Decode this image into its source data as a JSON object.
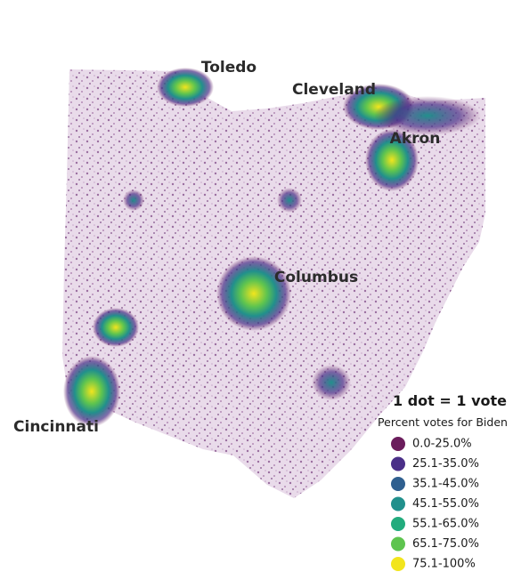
{
  "map": {
    "cities": [
      "Toledo",
      "Cleveland",
      "Akron",
      "Columbus",
      "Cincinnati"
    ],
    "legend": {
      "title": "1 dot = 1 vote",
      "subtitle": "Percent votes for Biden",
      "items": [
        {
          "label": "0.0-25.0%",
          "color": "#6b1d5c"
        },
        {
          "label": "25.1-35.0%",
          "color": "#4a2f88"
        },
        {
          "label": "35.1-45.0%",
          "color": "#2f5f8f"
        },
        {
          "label": "45.1-55.0%",
          "color": "#21908c"
        },
        {
          "label": "55.1-65.0%",
          "color": "#22ab7d"
        },
        {
          "label": "65.1-75.0%",
          "color": "#5ec44f"
        },
        {
          "label": "75.1-100%",
          "color": "#f2e51d"
        }
      ]
    }
  }
}
